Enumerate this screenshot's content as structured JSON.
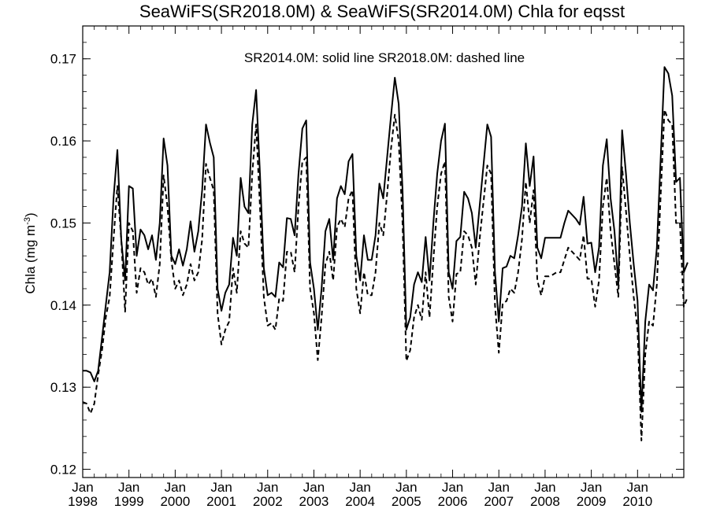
{
  "chart_data": {
    "type": "line",
    "title": "SeaWiFS(SR2018.0M) & SeaWiFS(SR2014.0M)  Chla for eqsst",
    "annotation": "SR2014.0M: solid line   SR2018.0M: dashed line",
    "ylabel_main": "Chla (mg m",
    "ylabel_sup": "-3",
    "ylabel_close": ")",
    "ylim": [
      0.119,
      0.174
    ],
    "xlim": [
      1998.0,
      2011.0
    ],
    "yticks": [
      "0.12",
      "0.13",
      "0.14",
      "0.15",
      "0.16",
      "0.17"
    ],
    "xtick_month": "Jan",
    "xtick_years": [
      "1998",
      "1999",
      "2000",
      "2001",
      "2002",
      "2003",
      "2004",
      "2005",
      "2006",
      "2007",
      "2008",
      "2009",
      "2010"
    ],
    "x_start": 1998.0,
    "x_step_months": 1,
    "series": [
      {
        "name": "SR2014.0M",
        "style": "solid",
        "values": [
          0.132,
          0.132,
          0.1318,
          0.1307,
          0.132,
          0.136,
          0.14,
          0.144,
          0.153,
          0.1589,
          0.148,
          0.143,
          0.1545,
          0.1542,
          0.146,
          0.1492,
          0.1485,
          0.1468,
          0.1485,
          0.1455,
          0.15,
          0.1603,
          0.157,
          0.146,
          0.145,
          0.1468,
          0.1448,
          0.1468,
          0.1502,
          0.1465,
          0.149,
          0.154,
          0.162,
          0.1598,
          0.158,
          0.142,
          0.1393,
          0.1415,
          0.1425,
          0.1482,
          0.146,
          0.1555,
          0.152,
          0.1512,
          0.162,
          0.1662,
          0.156,
          0.1445,
          0.1412,
          0.1415,
          0.141,
          0.1452,
          0.1446,
          0.1506,
          0.1505,
          0.1485,
          0.156,
          0.1615,
          0.1625,
          0.1452,
          0.142,
          0.137,
          0.142,
          0.149,
          0.1505,
          0.1455,
          0.153,
          0.1545,
          0.1535,
          0.1575,
          0.1584,
          0.146,
          0.143,
          0.1485,
          0.1455,
          0.1455,
          0.1485,
          0.1548,
          0.153,
          0.158,
          0.163,
          0.1677,
          0.1645,
          0.154,
          0.137,
          0.1385,
          0.1425,
          0.144,
          0.1428,
          0.1483,
          0.143,
          0.15,
          0.156,
          0.16,
          0.1621,
          0.144,
          0.142,
          0.1478,
          0.1483,
          0.1538,
          0.153,
          0.1512,
          0.147,
          0.152,
          0.157,
          0.162,
          0.1605,
          0.144,
          0.138,
          0.1445,
          0.1447,
          0.146,
          0.1457,
          0.1485,
          0.152,
          0.1597,
          0.1545,
          0.1581,
          0.147,
          0.1457,
          0.1482,
          0.1482,
          0.1482,
          0.1482,
          0.1482,
          0.15,
          0.1515,
          0.151,
          0.1505,
          0.1498,
          0.1532,
          0.1475,
          0.1476,
          0.144,
          0.147,
          0.157,
          0.1602,
          0.153,
          0.149,
          0.1425,
          0.1613,
          0.156,
          0.15,
          0.145,
          0.1405,
          0.127,
          0.138,
          0.1425,
          0.1418,
          0.147,
          0.158,
          0.169,
          0.1682,
          0.1655,
          0.155,
          0.1555,
          0.144,
          0.1452
        ]
      },
      {
        "name": "SR2018.0M",
        "style": "dashed",
        "values": [
          0.1282,
          0.128,
          0.1268,
          0.128,
          0.1315,
          0.1345,
          0.1385,
          0.141,
          0.148,
          0.1545,
          0.148,
          0.1392,
          0.15,
          0.149,
          0.1415,
          0.1445,
          0.144,
          0.1425,
          0.1432,
          0.141,
          0.145,
          0.1558,
          0.152,
          0.1455,
          0.142,
          0.143,
          0.1412,
          0.1425,
          0.145,
          0.143,
          0.144,
          0.148,
          0.1572,
          0.1555,
          0.154,
          0.139,
          0.1352,
          0.137,
          0.138,
          0.1445,
          0.1415,
          0.149,
          0.1475,
          0.147,
          0.156,
          0.162,
          0.152,
          0.141,
          0.1375,
          0.1378,
          0.137,
          0.1408,
          0.1405,
          0.1465,
          0.1465,
          0.144,
          0.152,
          0.1575,
          0.158,
          0.142,
          0.139,
          0.1333,
          0.1385,
          0.145,
          0.1465,
          0.143,
          0.1495,
          0.1505,
          0.1495,
          0.153,
          0.154,
          0.142,
          0.139,
          0.144,
          0.1412,
          0.1412,
          0.144,
          0.15,
          0.1485,
          0.1535,
          0.159,
          0.1632,
          0.16,
          0.15,
          0.1332,
          0.1345,
          0.1385,
          0.14,
          0.1382,
          0.144,
          0.1385,
          0.1455,
          0.152,
          0.156,
          0.1575,
          0.141,
          0.138,
          0.1438,
          0.144,
          0.149,
          0.1485,
          0.147,
          0.1425,
          0.148,
          0.1525,
          0.157,
          0.156,
          0.14,
          0.1342,
          0.1402,
          0.1405,
          0.142,
          0.1415,
          0.144,
          0.148,
          0.155,
          0.15,
          0.154,
          0.143,
          0.1412,
          0.1435,
          0.1435,
          0.1437,
          0.144,
          0.144,
          0.1455,
          0.147,
          0.1465,
          0.146,
          0.1455,
          0.1485,
          0.1432,
          0.1432,
          0.1398,
          0.143,
          0.152,
          0.1555,
          0.149,
          0.145,
          0.141,
          0.1568,
          0.1515,
          0.146,
          0.141,
          0.137,
          0.1235,
          0.134,
          0.138,
          0.1375,
          0.1425,
          0.1535,
          0.1638,
          0.1625,
          0.162,
          0.15,
          0.15,
          0.1398,
          0.141
        ]
      }
    ]
  }
}
